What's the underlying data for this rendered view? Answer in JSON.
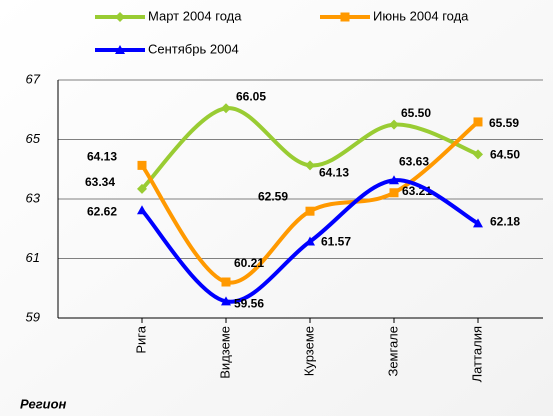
{
  "chart_data": {
    "type": "line",
    "x_label": "Регион",
    "categories": [
      "Рига",
      "Видземе",
      "Курземе",
      "Земгале",
      "Латталия"
    ],
    "series": [
      {
        "name": "Март 2004 года",
        "color": "#99cc33",
        "marker": "diamond",
        "values": [
          63.34,
          66.05,
          64.13,
          65.5,
          64.5
        ],
        "value_labels": [
          "63.34",
          "66.05",
          "64.13",
          "65.50",
          "64.50"
        ]
      },
      {
        "name": "Июнь 2004 года",
        "color": "#ff9900",
        "marker": "square",
        "values": [
          64.13,
          60.21,
          62.59,
          63.21,
          65.59
        ],
        "value_labels": [
          "64.13",
          "60.21",
          "62.59",
          "63.21",
          "65.59"
        ]
      },
      {
        "name": "Сентябрь 2004",
        "color": "#0000ff",
        "marker": "triangle",
        "values": [
          62.62,
          59.56,
          61.57,
          63.63,
          62.18
        ],
        "value_labels": [
          "62.62",
          "59.56",
          "61.57",
          "63.63",
          "62.18"
        ]
      }
    ],
    "ylim": [
      59,
      67
    ],
    "yticks": [
      59,
      61,
      63,
      65,
      67
    ],
    "grid": true,
    "legend": "top"
  }
}
